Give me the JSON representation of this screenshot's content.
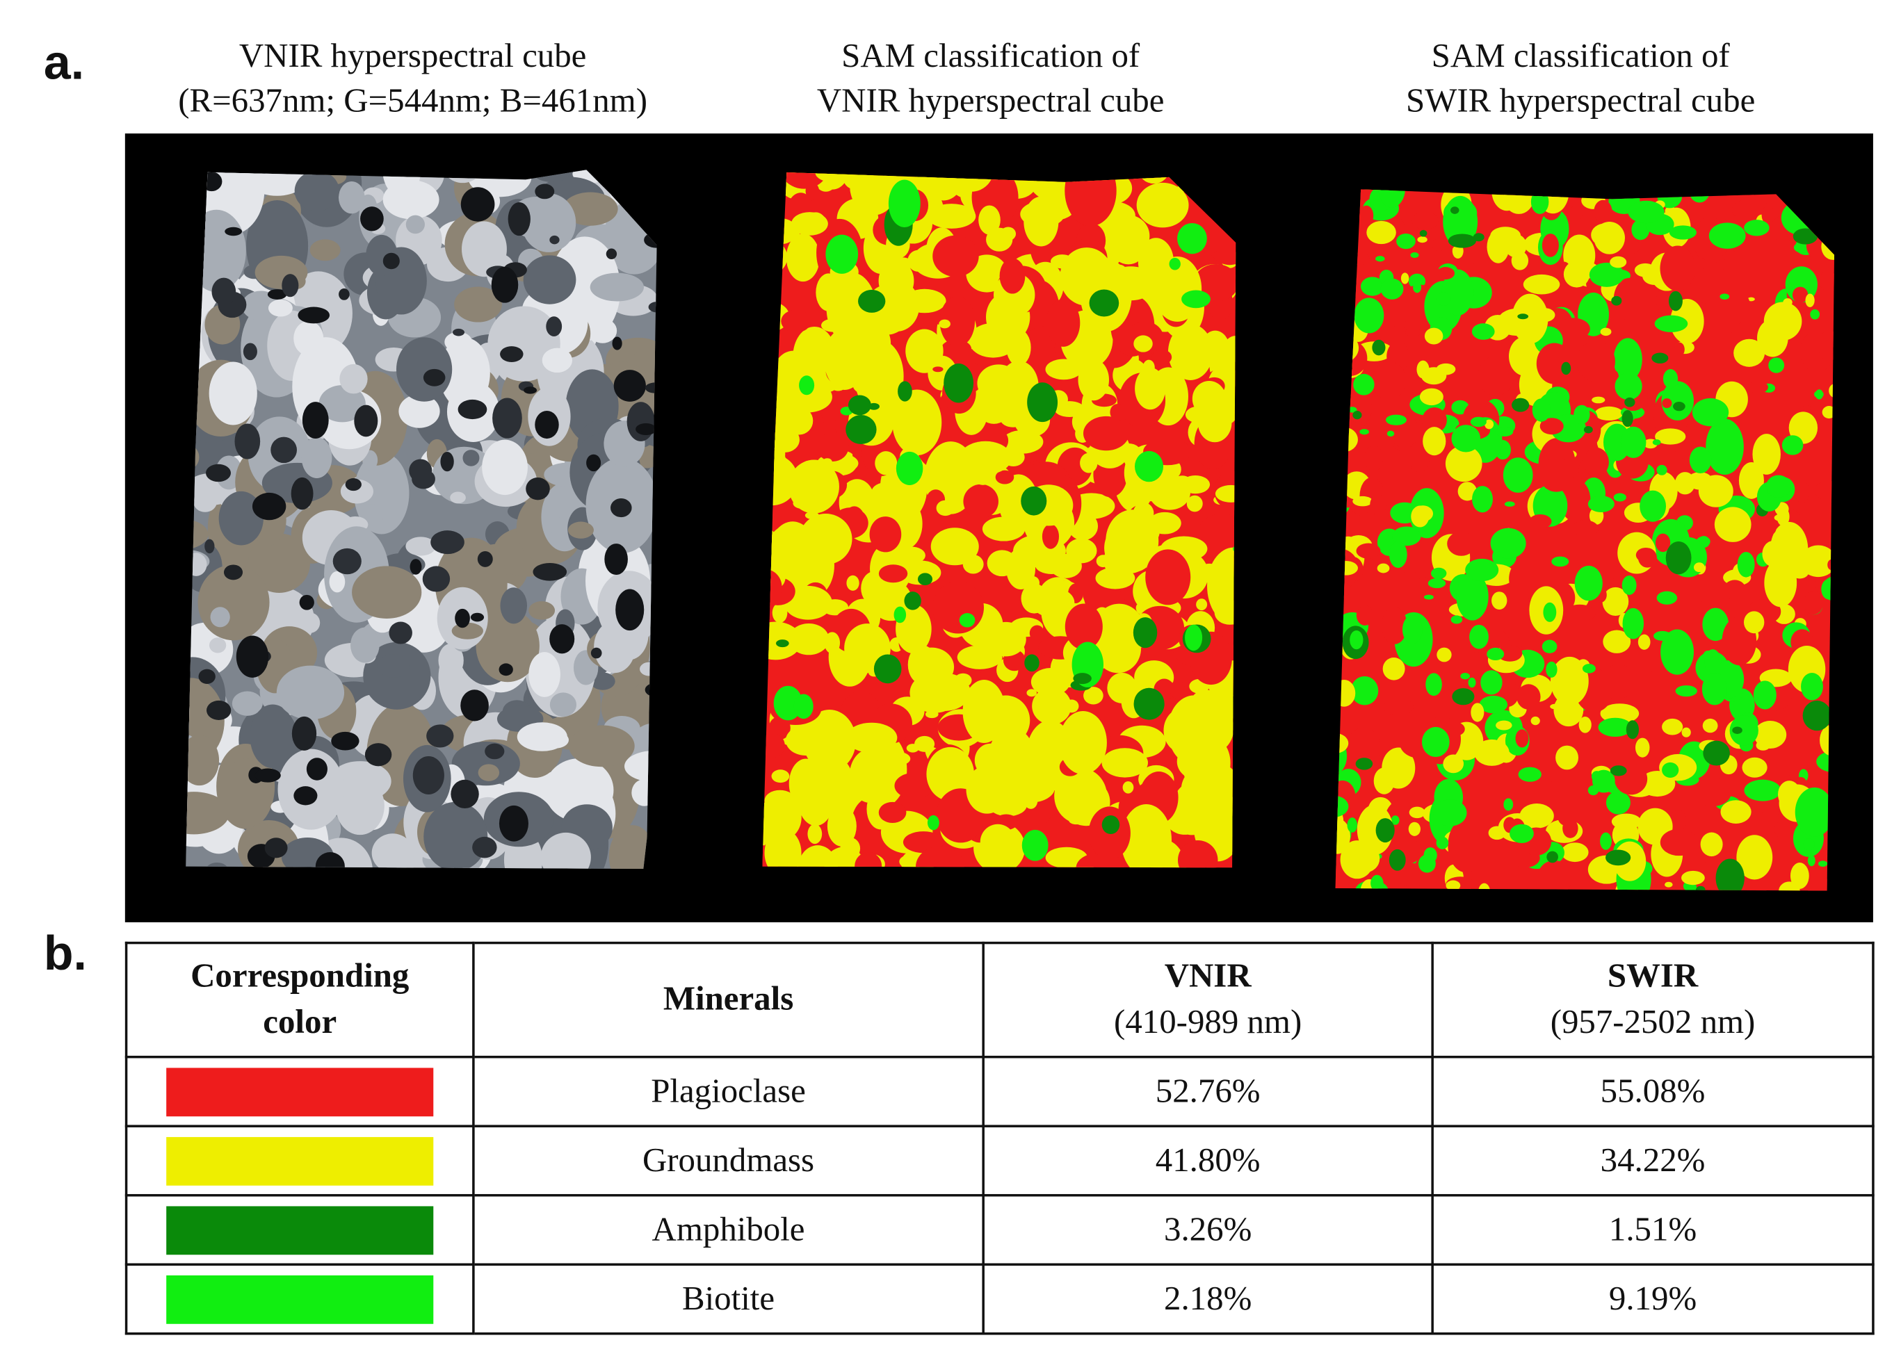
{
  "panel_a_label": "a.",
  "panel_b_label": "b.",
  "images": [
    {
      "title_line1": "VNIR hyperspectral cube",
      "title_line2": "(R=637nm; G=544nm; B=461nm)",
      "kind": "rgb"
    },
    {
      "title_line1": "SAM classification of",
      "title_line2": "VNIR hyperspectral cube",
      "kind": "sam-vnir"
    },
    {
      "title_line1": "SAM classification of",
      "title_line2": "SWIR hyperspectral cube",
      "kind": "sam-swir"
    }
  ],
  "table": {
    "headers": {
      "color": {
        "line1": "Corresponding",
        "line2": "color"
      },
      "minerals": {
        "line1": "Minerals"
      },
      "vnir": {
        "line1": "VNIR",
        "line2": "(410-989 nm)"
      },
      "swir": {
        "line1": "SWIR",
        "line2": "(957-2502 nm)"
      }
    },
    "rows": [
      {
        "color": "#ee1c1c",
        "mineral": "Plagioclase",
        "vnir": "52.76%",
        "swir": "55.08%"
      },
      {
        "color": "#eeee00",
        "mineral": "Groundmass",
        "vnir": "41.80%",
        "swir": "34.22%"
      },
      {
        "color": "#0a8a0a",
        "mineral": "Amphibole",
        "vnir": "3.26%",
        "swir": "1.51%"
      },
      {
        "color": "#11ee11",
        "mineral": "Biotite",
        "vnir": "2.18%",
        "swir": "9.19%"
      }
    ]
  },
  "colors": {
    "background": "#000000",
    "plagioclase": "#ee1c1c",
    "groundmass": "#eeee00",
    "amphibole": "#0a8a0a",
    "biotite": "#11ee11"
  }
}
